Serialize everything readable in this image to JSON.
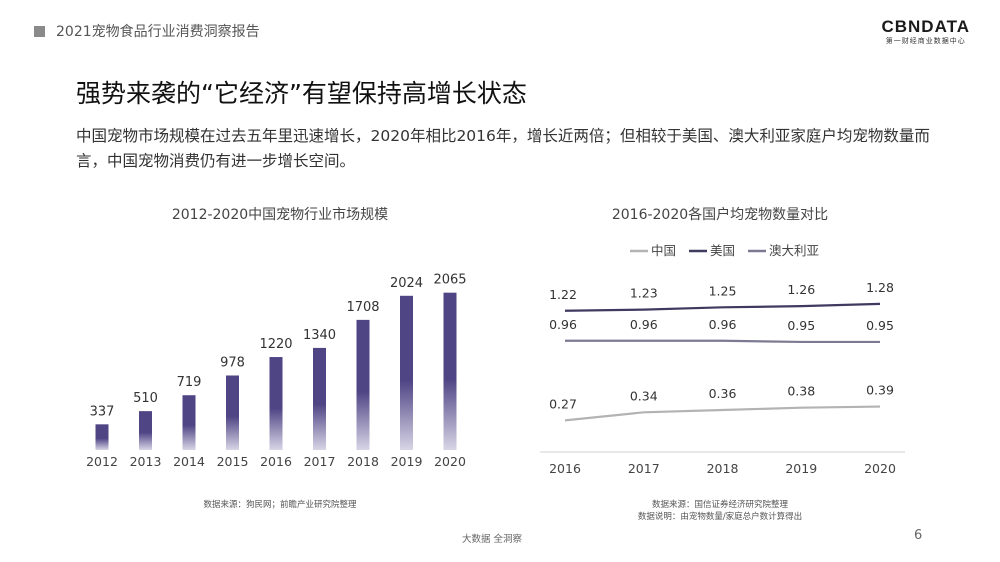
{
  "header": {
    "title": "2021宠物食品行业消费洞察报告"
  },
  "logo": {
    "main": "CBNDATA",
    "sub": "第一财经商业数据中心"
  },
  "page_title": "强势来袭的“它经济”有望保持高增长状态",
  "intro": "中国宠物市场规模在过去五年里迅速增长，2020年相比2016年，增长近两倍；但相较于美国、澳大利亚家庭户均宠物数量而言，中国宠物消费仍有进一步增长空间。",
  "charts": {
    "left": {
      "title": "2012-2020中国宠物行业市场规模",
      "source": "数据来源：狗民网；前瞻产业研究院整理"
    },
    "right": {
      "title": "2016-2020各国户均宠物数量对比",
      "source_line1": "数据来源：国信证券经济研究院整理",
      "source_line2": "数据说明：由宠物数量/家庭总户数计算得出"
    }
  },
  "footer": {
    "text": "大数据   全洞察",
    "page": "6"
  },
  "colors": {
    "bar": "#4f4585",
    "china": "#b3b3b3",
    "usa": "#3f3a5f",
    "australia": "#7c7a92"
  },
  "chart_data": [
    {
      "type": "bar",
      "title": "2012-2020中国宠物行业市场规模",
      "categories": [
        "2012",
        "2013",
        "2014",
        "2015",
        "2016",
        "2017",
        "2018",
        "2019",
        "2020"
      ],
      "values": [
        337,
        510,
        719,
        978,
        1220,
        1340,
        1708,
        2024,
        2065
      ],
      "ylim": [
        0,
        2100
      ],
      "grid": false
    },
    {
      "type": "line",
      "title": "2016-2020各国户均宠物数量对比",
      "x": [
        "2016",
        "2017",
        "2018",
        "2019",
        "2020"
      ],
      "legend_position": "top",
      "series": [
        {
          "name": "中国",
          "color": "#b3b3b3",
          "values": [
            0.27,
            0.34,
            0.36,
            0.38,
            0.39
          ]
        },
        {
          "name": "美国",
          "color": "#3f3a5f",
          "values": [
            1.22,
            1.23,
            1.25,
            1.26,
            1.28
          ]
        },
        {
          "name": "澳大利亚",
          "color": "#7c7a92",
          "values": [
            0.96,
            0.96,
            0.96,
            0.95,
            0.95
          ]
        }
      ],
      "ylim": [
        0.1,
        1.4
      ],
      "grid": false
    }
  ]
}
